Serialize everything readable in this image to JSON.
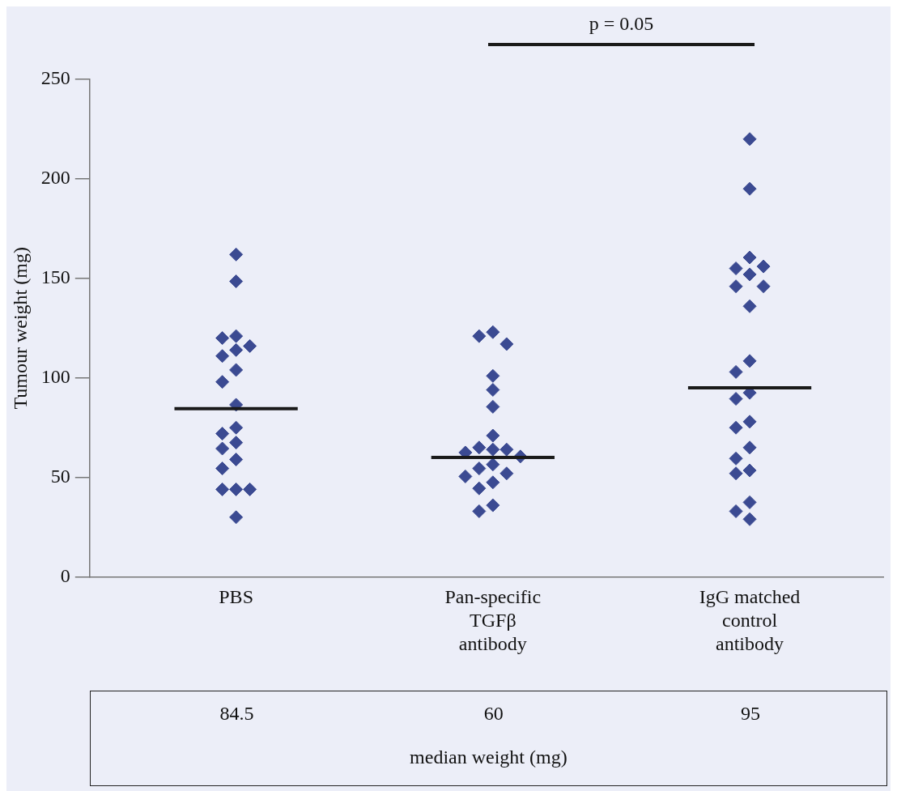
{
  "chart_data": {
    "type": "scatter",
    "ylabel": "Tumour weight (mg)",
    "categories": [
      "PBS",
      "Pan-specific\nTGFβ\nantibody",
      "IgG matched\ncontrol\nantibody"
    ],
    "ylim": [
      0,
      250
    ],
    "yticks": [
      0,
      50,
      100,
      150,
      200,
      250
    ],
    "grid": false,
    "legend": false,
    "marker": "diamond",
    "series": [
      {
        "color": "#3b4a92",
        "x": [
          "PBS",
          "PBS",
          "PBS",
          "PBS",
          "PBS",
          "PBS",
          "PBS",
          "PBS",
          "PBS",
          "PBS",
          "PBS",
          "PBS",
          "PBS",
          "PBS",
          "PBS",
          "PBS",
          "PBS",
          "PBS",
          "PBS",
          "PBS"
        ],
        "values": [
          162,
          148.5,
          121,
          120,
          114,
          116,
          111,
          104,
          98,
          86.5,
          75,
          72,
          67.5,
          64.5,
          59,
          54.5,
          44,
          44,
          44,
          30
        ]
      },
      {
        "color": "#3b4a92",
        "x": [
          "Pan-specific\nTGFβ\nantibody",
          "Pan-specific\nTGFβ\nantibody",
          "Pan-specific\nTGFβ\nantibody",
          "Pan-specific\nTGFβ\nantibody",
          "Pan-specific\nTGFβ\nantibody",
          "Pan-specific\nTGFβ\nantibody",
          "Pan-specific\nTGFβ\nantibody",
          "Pan-specific\nTGFβ\nantibody",
          "Pan-specific\nTGFβ\nantibody",
          "Pan-specific\nTGFβ\nantibody",
          "Pan-specific\nTGFβ\nantibody",
          "Pan-specific\nTGFβ\nantibody",
          "Pan-specific\nTGFβ\nantibody",
          "Pan-specific\nTGFβ\nantibody",
          "Pan-specific\nTGFβ\nantibody",
          "Pan-specific\nTGFβ\nantibody",
          "Pan-specific\nTGFβ\nantibody",
          "Pan-specific\nTGFβ\nantibody",
          "Pan-specific\nTGFβ\nantibody",
          "Pan-specific\nTGFβ\nantibody"
        ],
        "values": [
          123,
          121,
          117,
          101,
          94,
          85.5,
          71,
          64,
          65,
          64,
          62.5,
          60.5,
          56.5,
          54.5,
          52,
          50.5,
          47.5,
          44.5,
          36,
          33
        ]
      },
      {
        "color": "#3b4a92",
        "x": [
          "IgG matched\ncontrol\nantibody",
          "IgG matched\ncontrol\nantibody",
          "IgG matched\ncontrol\nantibody",
          "IgG matched\ncontrol\nantibody",
          "IgG matched\ncontrol\nantibody",
          "IgG matched\ncontrol\nantibody",
          "IgG matched\ncontrol\nantibody",
          "IgG matched\ncontrol\nantibody",
          "IgG matched\ncontrol\nantibody",
          "IgG matched\ncontrol\nantibody",
          "IgG matched\ncontrol\nantibody",
          "IgG matched\ncontrol\nantibody",
          "IgG matched\ncontrol\nantibody",
          "IgG matched\ncontrol\nantibody",
          "IgG matched\ncontrol\nantibody",
          "IgG matched\ncontrol\nantibody",
          "IgG matched\ncontrol\nantibody",
          "IgG matched\ncontrol\nantibody",
          "IgG matched\ncontrol\nantibody",
          "IgG matched\ncontrol\nantibody",
          "IgG matched\ncontrol\nantibody",
          "IgG matched\ncontrol\nantibody"
        ],
        "values": [
          220,
          195,
          160.5,
          155,
          156,
          152,
          146,
          146,
          136,
          108.5,
          103,
          92.5,
          89.5,
          78,
          75,
          65,
          59.5,
          53.5,
          52,
          37.5,
          33,
          29
        ]
      }
    ],
    "ref_lines": [
      {
        "axis": "y",
        "value": 84.5,
        "color": "#1a1a1a",
        "line_style": "solid"
      },
      {
        "axis": "y",
        "value": 60,
        "color": "#1a1a1a",
        "line_style": "solid"
      },
      {
        "axis": "y",
        "value": 95,
        "color": "#1a1a1a",
        "line_style": "solid"
      }
    ],
    "annotations": [
      "84.5",
      "60",
      "95",
      "median weight (mg)",
      "p = 0.05"
    ]
  }
}
